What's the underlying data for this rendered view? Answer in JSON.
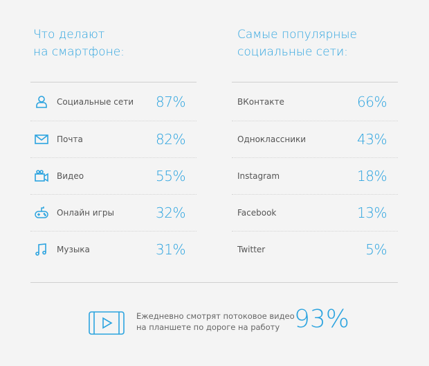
{
  "left": {
    "title_line1": "Что делают",
    "title_line2": "на смартфоне:",
    "items": [
      {
        "label": "Социальные сети",
        "value": "87%",
        "icon": "user-icon"
      },
      {
        "label": "Почта",
        "value": "82%",
        "icon": "mail-icon"
      },
      {
        "label": "Видео",
        "value": "55%",
        "icon": "video-camera-icon"
      },
      {
        "label": "Онлайн игры",
        "value": "32%",
        "icon": "gamepad-icon"
      },
      {
        "label": "Музыка",
        "value": "31%",
        "icon": "music-note-icon"
      }
    ]
  },
  "right": {
    "title_line1": "Самые популярные",
    "title_line2": "социальные сети:",
    "items": [
      {
        "label": "ВКонтакте",
        "value": "66%"
      },
      {
        "label": "Одноклассники",
        "value": "43%"
      },
      {
        "label": "Instagram",
        "value": "18%"
      },
      {
        "label": "Facebook",
        "value": "13%"
      },
      {
        "label": "Twitter",
        "value": "5%"
      }
    ]
  },
  "footer": {
    "line1": "Ежедневно смотрят потоковое видео",
    "line2": "на планшете по дороге на работу",
    "value": "93%",
    "icon": "tablet-play-icon"
  },
  "colors": {
    "accent": "#2ba3df",
    "background": "#f4f4f4"
  }
}
